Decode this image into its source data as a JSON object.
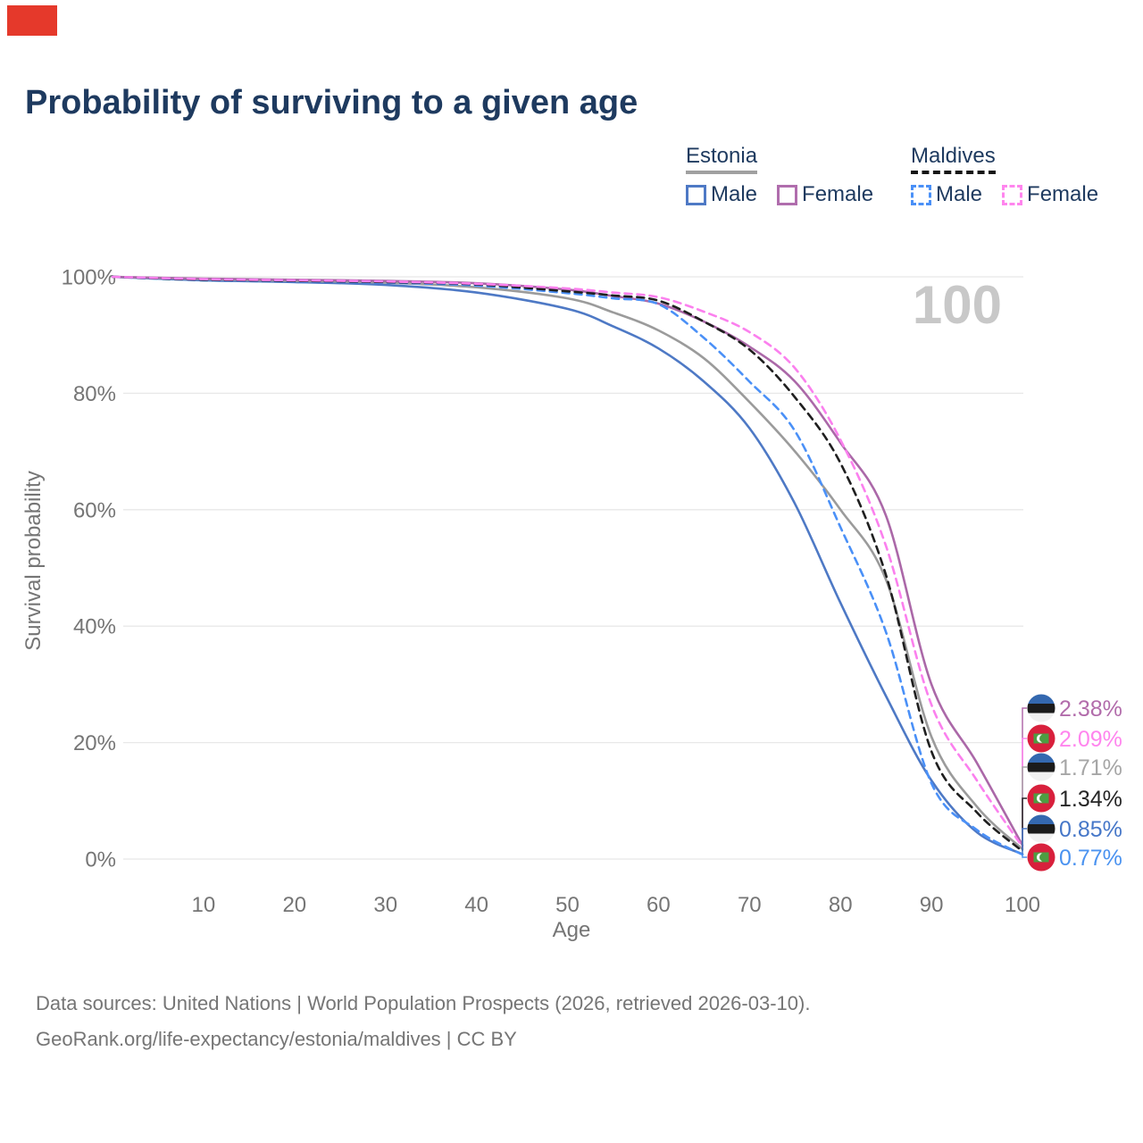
{
  "marker_color": "#e5392b",
  "title": "Probability of surviving to a given age",
  "legend": {
    "groups": [
      {
        "name": "Estonia",
        "underline_style": "solid",
        "underline_color": "#a0a0a0",
        "items": [
          {
            "label": "Male",
            "color": "#4e79c5",
            "dash": false
          },
          {
            "label": "Female",
            "color": "#b06dad",
            "dash": false
          }
        ]
      },
      {
        "name": "Maldives",
        "underline_style": "dashed",
        "underline_color": "#161616",
        "items": [
          {
            "label": "Male",
            "color": "#4a90f7",
            "dash": true
          },
          {
            "label": "Female",
            "color": "#ff85ee",
            "dash": true
          }
        ]
      }
    ]
  },
  "watermark": "100",
  "chart_data": {
    "type": "line",
    "title": "Probability of surviving to a given age",
    "xlabel": "Age",
    "ylabel": "Survival probability",
    "xlim": [
      0,
      100
    ],
    "ylim": [
      0,
      100
    ],
    "grid": "horizontal",
    "x_ticks": [
      10,
      20,
      30,
      40,
      50,
      60,
      70,
      80,
      90,
      100
    ],
    "y_ticks": [
      0,
      20,
      40,
      60,
      80,
      100
    ],
    "y_tick_suffix": "%",
    "ages": [
      0,
      10,
      20,
      30,
      40,
      50,
      55,
      60,
      65,
      70,
      75,
      80,
      85,
      90,
      95,
      100
    ],
    "series": [
      {
        "id": "estonia_male",
        "name": "Estonia Male",
        "color": "#4e79c5",
        "dash": false,
        "values": [
          100,
          99.4,
          99.1,
          98.6,
          97.3,
          94.5,
          91.5,
          87.7,
          82.0,
          74.0,
          61.0,
          44.0,
          28.0,
          13.5,
          4.6,
          0.85
        ]
      },
      {
        "id": "estonia_both",
        "name": "Estonia",
        "color": "#9b9b9b",
        "dash": false,
        "values": [
          100,
          99.6,
          99.3,
          99.0,
          98.2,
          96.3,
          93.9,
          90.8,
          86.0,
          78.5,
          70.0,
          60.0,
          48.0,
          21.0,
          9.0,
          1.71
        ]
      },
      {
        "id": "estonia_female",
        "name": "Estonia Female",
        "color": "#ab68a8",
        "dash": false,
        "values": [
          100,
          99.7,
          99.5,
          99.3,
          98.9,
          97.8,
          96.7,
          95.4,
          92.3,
          88.0,
          82.0,
          71.5,
          59.0,
          30.0,
          16.5,
          2.38
        ]
      },
      {
        "id": "maldives_male",
        "name": "Maldives Male",
        "color": "#4a90f7",
        "dash": true,
        "values": [
          100,
          99.4,
          99.2,
          99.0,
          98.5,
          97.2,
          96.3,
          95.3,
          89.5,
          82.0,
          73.5,
          57.0,
          39.0,
          13.0,
          5.0,
          0.77
        ]
      },
      {
        "id": "maldives_both",
        "name": "Maldives",
        "color": "#1f1f1f",
        "dash": true,
        "values": [
          100,
          99.5,
          99.3,
          99.1,
          98.7,
          97.5,
          96.8,
          95.9,
          92.3,
          87.5,
          79.3,
          68.0,
          48.8,
          18.5,
          8.0,
          1.34
        ]
      },
      {
        "id": "maldives_female",
        "name": "Maldives Female",
        "color": "#fb80ee",
        "dash": true,
        "values": [
          100,
          99.6,
          99.4,
          99.2,
          98.8,
          98.0,
          97.3,
          96.5,
          94.0,
          90.5,
          84.3,
          72.0,
          53.8,
          26.5,
          13.5,
          2.09
        ]
      }
    ],
    "end_labels": [
      {
        "flag": "estonia",
        "text": "2.38%",
        "value": 2.38,
        "color": "#b26cab"
      },
      {
        "flag": "maldives",
        "text": "2.09%",
        "value": 2.09,
        "color": "#ff85ee"
      },
      {
        "flag": "estonia",
        "text": "1.71%",
        "value": 1.71,
        "color": "#a6a6a6"
      },
      {
        "flag": "maldives",
        "text": "1.34%",
        "value": 1.34,
        "color": "#262626"
      },
      {
        "flag": "estonia",
        "text": "0.85%",
        "value": 0.85,
        "color": "#4677c8"
      },
      {
        "flag": "maldives",
        "text": "0.77%",
        "value": 0.77,
        "color": "#4b93f0"
      }
    ]
  },
  "footer": {
    "line1": "Data sources: United Nations | World Population Prospects (2026, retrieved 2026-03-10).",
    "line2": "GeoRank.org/life-expectancy/estonia/maldives | CC BY"
  }
}
